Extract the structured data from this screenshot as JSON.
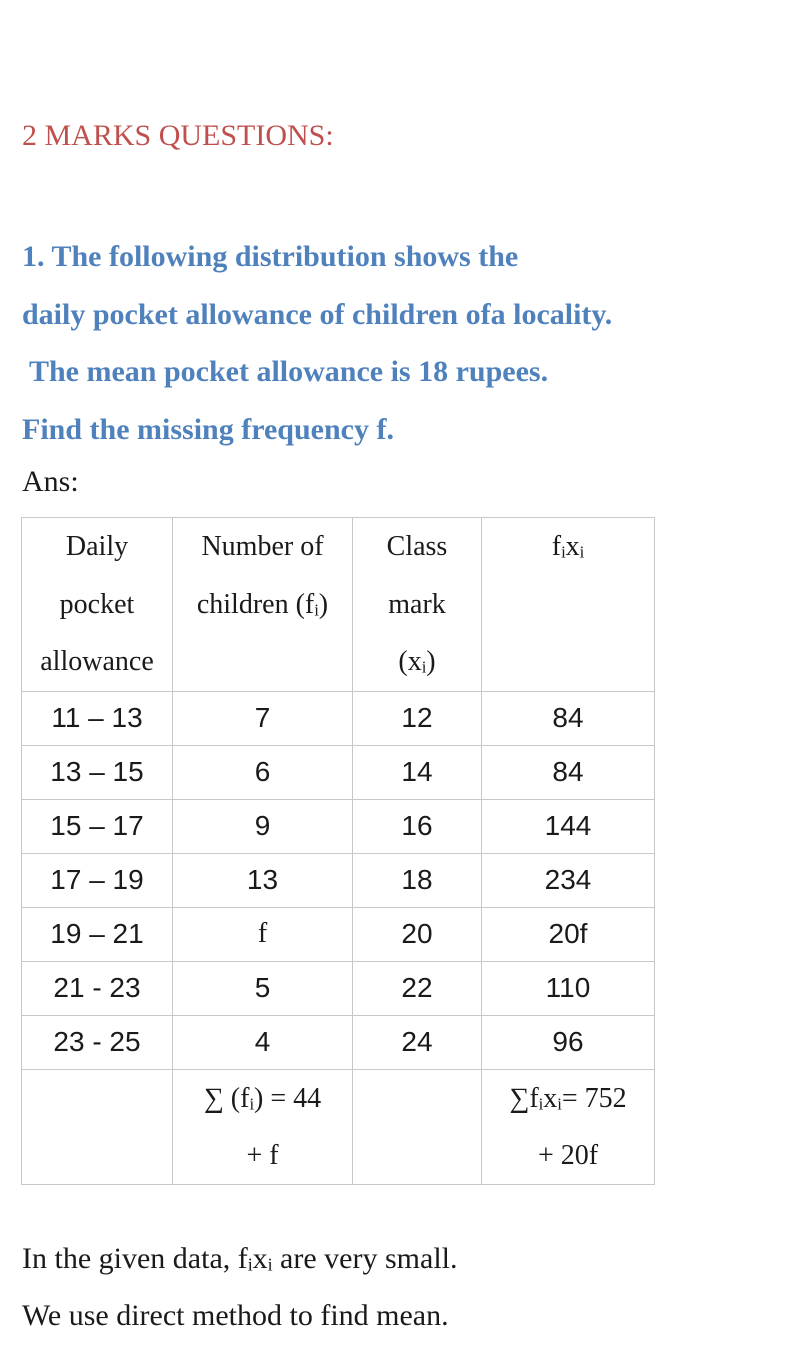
{
  "heading": "2 MARKS QUESTIONS:",
  "question": {
    "lines": [
      "1. The following distribution shows the",
      "daily pocket allowance of children ofa  locality.",
      " The mean pocket allowance is 18 rupees.",
      "Find the missing frequency f."
    ]
  },
  "ans_label": "Ans:",
  "table": {
    "headers": [
      [
        "Daily",
        "pocket",
        "allowance"
      ],
      [
        "Number of",
        "children (fᵢ)"
      ],
      [
        "Class",
        "mark",
        "(xᵢ)"
      ],
      [
        "fᵢxᵢ"
      ]
    ],
    "rows": [
      [
        "11 – 13",
        "7",
        "12",
        "84"
      ],
      [
        "13 – 15",
        "6",
        "14",
        "84"
      ],
      [
        "15 – 17",
        "9",
        "16",
        "144"
      ],
      [
        "17 – 19",
        "13",
        "18",
        "234"
      ],
      [
        "19 – 21",
        "f",
        "20",
        "20f"
      ],
      [
        "21 - 23",
        "5",
        "22",
        "110"
      ],
      [
        "23 - 25",
        "4",
        "24",
        "96"
      ]
    ],
    "total": {
      "sum_f": [
        "∑ (fᵢ) = 44",
        "+ f"
      ],
      "sum_fx": [
        "∑fᵢxᵢ= 752",
        "+ 20f"
      ]
    }
  },
  "footer": [
    "In the given data, fᵢxᵢ are very small.",
    "We use direct method to find mean."
  ]
}
